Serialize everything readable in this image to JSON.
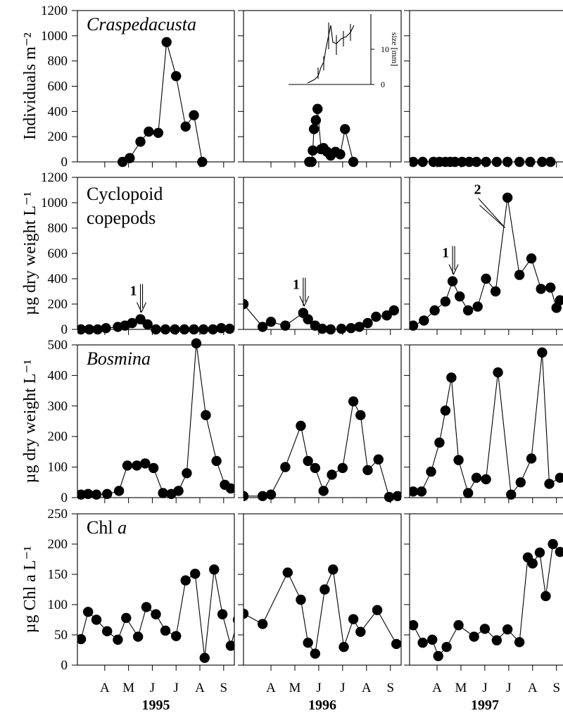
{
  "chart_data": {
    "type": "line",
    "years": [
      "1995",
      "1996",
      "1997"
    ],
    "month_ticks": [
      "A",
      "M",
      "J",
      "J",
      "A",
      "S"
    ],
    "panels": [
      {
        "title": "Craspedacusta",
        "title_italic": true,
        "ylabel": "Individuals m⁻²",
        "ylim": [
          0,
          1200
        ],
        "yticks": [
          0,
          200,
          400,
          600,
          800,
          1000,
          1200
        ],
        "series": [
          [
            [
              4.75,
              0
            ],
            [
              5.05,
              30
            ],
            [
              5.5,
              160
            ],
            [
              5.85,
              240
            ],
            [
              6.25,
              230
            ],
            [
              6.6,
              950
            ],
            [
              7.0,
              680
            ],
            [
              7.4,
              280
            ],
            [
              7.75,
              370
            ],
            [
              8.1,
              0
            ]
          ],
          [
            [
              5.6,
              0
            ],
            [
              5.7,
              0
            ],
            [
              5.75,
              90
            ],
            [
              5.8,
              260
            ],
            [
              5.88,
              330
            ],
            [
              5.95,
              420
            ],
            [
              6.1,
              100
            ],
            [
              6.2,
              110
            ],
            [
              6.35,
              80
            ],
            [
              6.5,
              50
            ],
            [
              6.7,
              80
            ],
            [
              6.9,
              60
            ],
            [
              7.1,
              260
            ],
            [
              7.45,
              0
            ]
          ],
          [
            [
              3.0,
              0
            ],
            [
              3.4,
              0
            ],
            [
              3.85,
              0
            ],
            [
              4.1,
              0
            ],
            [
              4.35,
              0
            ],
            [
              4.55,
              0
            ],
            [
              4.75,
              0
            ],
            [
              5.05,
              0
            ],
            [
              5.35,
              0
            ],
            [
              5.65,
              0
            ],
            [
              6.05,
              0
            ],
            [
              6.5,
              0
            ],
            [
              6.95,
              0
            ],
            [
              7.45,
              0
            ],
            [
              7.9,
              0
            ],
            [
              8.4,
              0
            ],
            [
              8.75,
              0
            ]
          ]
        ],
        "inset": {
          "ylabel": "size [mm]",
          "yticks": [
            0,
            10
          ]
        }
      },
      {
        "title_lines": [
          "Cyclopoid",
          "copepods"
        ],
        "title_italic": false,
        "ylabel": "µg dry weight L⁻¹",
        "ylim": [
          0,
          1200
        ],
        "yticks": [
          0,
          200,
          400,
          600,
          800,
          1000,
          1200
        ],
        "series": [
          [
            [
              3.0,
              0
            ],
            [
              3.35,
              0
            ],
            [
              3.7,
              0
            ],
            [
              4.05,
              10
            ],
            [
              4.55,
              20
            ],
            [
              4.85,
              30
            ],
            [
              5.15,
              50
            ],
            [
              5.5,
              80
            ],
            [
              5.8,
              40
            ],
            [
              6.15,
              0
            ],
            [
              6.55,
              0
            ],
            [
              6.95,
              0
            ],
            [
              7.35,
              0
            ],
            [
              7.75,
              0
            ],
            [
              8.15,
              0
            ],
            [
              8.55,
              0
            ],
            [
              8.9,
              10
            ],
            [
              9.25,
              5
            ]
          ],
          [
            [
              2.85,
              200
            ],
            [
              3.65,
              20
            ],
            [
              4.0,
              60
            ],
            [
              4.6,
              30
            ],
            [
              5.35,
              130
            ],
            [
              5.55,
              80
            ],
            [
              5.85,
              30
            ],
            [
              6.15,
              5
            ],
            [
              6.5,
              0
            ],
            [
              6.95,
              5
            ],
            [
              7.35,
              10
            ],
            [
              7.7,
              20
            ],
            [
              8.05,
              50
            ],
            [
              8.4,
              100
            ],
            [
              8.85,
              110
            ],
            [
              9.15,
              150
            ]
          ],
          [
            [
              3.0,
              30
            ],
            [
              3.45,
              70
            ],
            [
              3.9,
              150
            ],
            [
              4.35,
              220
            ],
            [
              4.65,
              380
            ],
            [
              4.95,
              260
            ],
            [
              5.3,
              150
            ],
            [
              5.7,
              180
            ],
            [
              6.05,
              400
            ],
            [
              6.45,
              300
            ],
            [
              6.95,
              1040
            ],
            [
              7.45,
              430
            ],
            [
              7.95,
              560
            ],
            [
              8.35,
              320
            ],
            [
              8.75,
              330
            ],
            [
              9.0,
              170
            ],
            [
              9.15,
              230
            ]
          ]
        ],
        "arrows": [
          {
            "panel": 0,
            "label": "1",
            "x": 5.5,
            "value": 80
          },
          {
            "panel": 1,
            "label": "1",
            "x": 5.35,
            "value": 130
          },
          {
            "panel": 2,
            "label": "1",
            "x": 4.65,
            "value": 380
          },
          {
            "panel": 2,
            "label": "2",
            "x": 6.55,
            "value": 780
          }
        ]
      },
      {
        "title": "Bosmina",
        "title_italic": true,
        "ylabel": "µg dry weight L⁻¹",
        "ylim": [
          0,
          500
        ],
        "yticks": [
          0,
          100,
          200,
          300,
          400,
          500
        ],
        "series": [
          [
            [
              3.0,
              10
            ],
            [
              3.3,
              12
            ],
            [
              3.65,
              10
            ],
            [
              4.1,
              12
            ],
            [
              4.6,
              22
            ],
            [
              4.95,
              105
            ],
            [
              5.35,
              105
            ],
            [
              5.7,
              112
            ],
            [
              6.05,
              97
            ],
            [
              6.45,
              15
            ],
            [
              6.8,
              12
            ],
            [
              7.1,
              22
            ],
            [
              7.45,
              80
            ],
            [
              7.85,
              505
            ],
            [
              8.25,
              270
            ],
            [
              8.7,
              120
            ],
            [
              9.05,
              42
            ],
            [
              9.3,
              30
            ]
          ],
          [
            [
              2.85,
              5
            ],
            [
              3.65,
              5
            ],
            [
              4.0,
              10
            ],
            [
              4.6,
              100
            ],
            [
              5.25,
              235
            ],
            [
              5.55,
              120
            ],
            [
              5.85,
              97
            ],
            [
              6.2,
              22
            ],
            [
              6.55,
              75
            ],
            [
              7.0,
              97
            ],
            [
              7.45,
              315
            ],
            [
              7.75,
              270
            ],
            [
              8.05,
              90
            ],
            [
              8.5,
              125
            ],
            [
              8.95,
              2
            ],
            [
              9.3,
              5
            ]
          ],
          [
            [
              3.0,
              20
            ],
            [
              3.35,
              20
            ],
            [
              3.75,
              85
            ],
            [
              4.1,
              180
            ],
            [
              4.35,
              285
            ],
            [
              4.6,
              393
            ],
            [
              4.9,
              123
            ],
            [
              5.3,
              15
            ],
            [
              5.65,
              65
            ],
            [
              6.05,
              60
            ],
            [
              6.55,
              410
            ],
            [
              7.1,
              10
            ],
            [
              7.5,
              50
            ],
            [
              7.95,
              128
            ],
            [
              8.4,
              475
            ],
            [
              8.7,
              45
            ],
            [
              9.15,
              65
            ]
          ]
        ]
      },
      {
        "title": "Chl",
        "title_suffix": "a",
        "title_italic": false,
        "ylabel": "µg Chl a L⁻¹",
        "ylim": [
          0,
          250
        ],
        "yticks": [
          0,
          50,
          100,
          150,
          200,
          250
        ],
        "series": [
          [
            [
              3.0,
              43
            ],
            [
              3.3,
              88
            ],
            [
              3.65,
              75
            ],
            [
              4.1,
              56
            ],
            [
              4.55,
              42
            ],
            [
              4.9,
              78
            ],
            [
              5.4,
              47
            ],
            [
              5.75,
              96
            ],
            [
              6.15,
              84
            ],
            [
              6.55,
              57
            ],
            [
              7.0,
              48
            ],
            [
              7.4,
              140
            ],
            [
              7.8,
              151
            ],
            [
              8.2,
              12
            ],
            [
              8.6,
              158
            ],
            [
              8.95,
              84
            ],
            [
              9.3,
              32
            ],
            [
              9.6,
              75
            ]
          ],
          [
            [
              2.85,
              85
            ],
            [
              3.65,
              68
            ],
            [
              4.7,
              153
            ],
            [
              5.25,
              108
            ],
            [
              5.55,
              37
            ],
            [
              5.85,
              19
            ],
            [
              6.25,
              125
            ],
            [
              6.6,
              158
            ],
            [
              7.05,
              30
            ],
            [
              7.45,
              76
            ],
            [
              7.75,
              55
            ],
            [
              8.45,
              91
            ],
            [
              9.25,
              35
            ]
          ],
          [
            [
              3.0,
              66
            ],
            [
              3.4,
              37
            ],
            [
              3.8,
              42
            ],
            [
              4.05,
              15
            ],
            [
              4.4,
              30
            ],
            [
              4.9,
              66
            ],
            [
              5.55,
              47
            ],
            [
              6.0,
              60
            ],
            [
              6.5,
              41
            ],
            [
              6.95,
              59
            ],
            [
              7.45,
              38
            ],
            [
              7.8,
              178
            ],
            [
              8.0,
              168
            ],
            [
              8.3,
              186
            ],
            [
              8.55,
              114
            ],
            [
              8.85,
              200
            ],
            [
              9.15,
              187
            ]
          ]
        ]
      }
    ]
  }
}
